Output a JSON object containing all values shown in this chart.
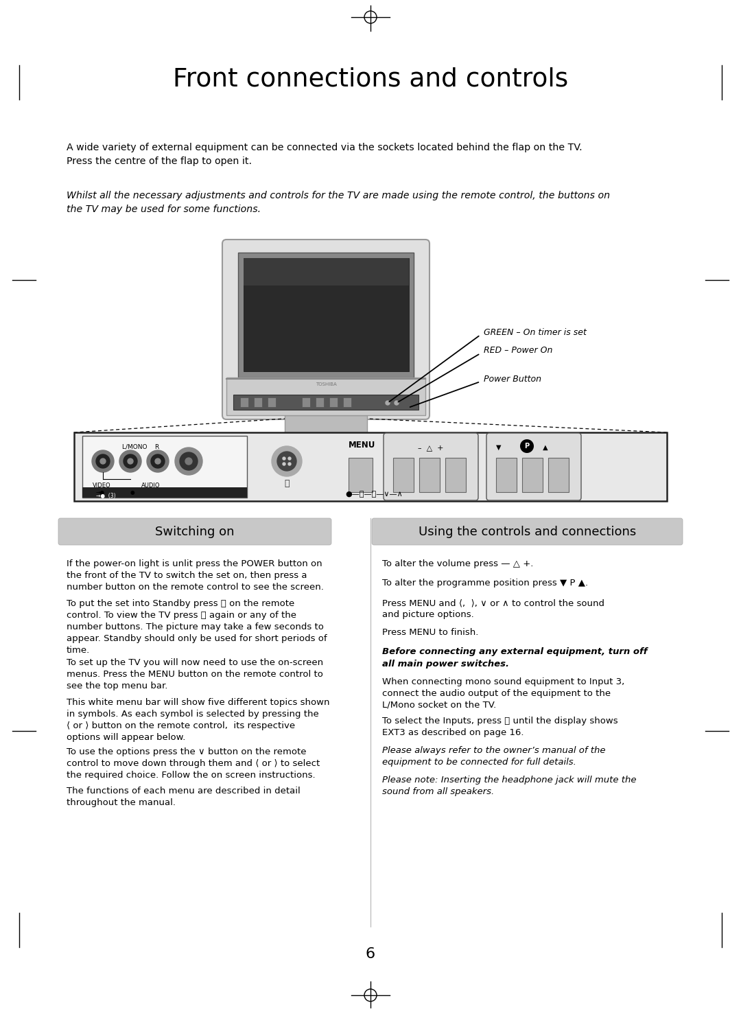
{
  "title": "Front connections and controls",
  "bg_color": "#ffffff",
  "page_number": "6",
  "intro_text_1": "A wide variety of external equipment can be connected via the sockets located behind the flap on the TV.\nPress the centre of the flap to open it.",
  "intro_text_2": "Whilst all the necessary adjustments and controls for the TV are made using the remote control, the buttons on\nthe TV may be used for some functions.",
  "label_green": "GREEN – On timer is set",
  "label_red": "RED – Power On",
  "label_power": "Power Button",
  "section_left_title": "Switching on",
  "section_right_title": "Using the controls and connections",
  "section_left_text": [
    "If the power-on light is unlit press the POWER button on\nthe front of the TV to switch the set on, then press a\nnumber button on the remote control to see the screen.",
    "To put the set into Standby press ⏻ on the remote\ncontrol. To view the TV press ⏻ again or any of the\nnumber buttons. The picture may take a few seconds to\nappear. Standby should only be used for short periods of\ntime.",
    "To set up the TV you will now need to use the on-screen\nmenus. Press the MENU button on the remote control to\nsee the top menu bar.",
    "This white menu bar will show five different topics shown\nin symbols. As each symbol is selected by pressing the\n⟨ or ⟩ button on the remote control,  its respective\noptions will appear below.",
    "To use the options press the ∨ button on the remote\ncontrol to move down through them and ⟨ or ⟩ to select\nthe required choice. Follow the on screen instructions.",
    "The functions of each menu are described in detail\nthroughout the manual."
  ],
  "section_right_text": [
    "To alter the volume press — △ +.",
    "To alter the programme position press ▼ P ▲.",
    "Press MENU and ⟨,  ⟩, ∨ or ∧ to control the sound\nand picture options.",
    "Press MENU to finish.",
    "Before connecting any external equipment, turn off\nall main power switches.",
    "When connecting mono sound equipment to Input 3,\nconnect the audio output of the equipment to the\nL/Mono socket on the TV.",
    "To select the Inputs, press ⭯ until the display shows\nEXT3 as described on page 16.",
    "Please always refer to the owner’s manual of the\nequipment to be connected for full details.",
    "Please note: Inserting the headphone jack will mute the\nsound from all speakers."
  ]
}
